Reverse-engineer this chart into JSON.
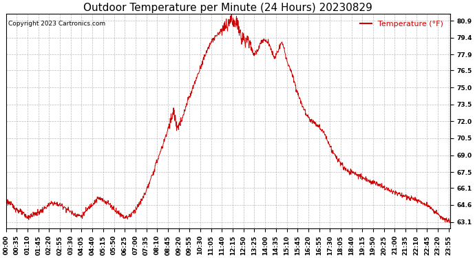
{
  "title": "Outdoor Temperature per Minute (24 Hours) 20230829",
  "copyright": "Copyright 2023 Cartronics.com",
  "legend_label": "Temperature (°F)",
  "line_color": "#cc0000",
  "background_color": "#ffffff",
  "grid_color": "#aaaaaa",
  "yticks": [
    63.1,
    64.6,
    66.1,
    67.5,
    69.0,
    70.5,
    72.0,
    73.5,
    75.0,
    76.5,
    77.9,
    79.4,
    80.9
  ],
  "ymin": 62.5,
  "ymax": 81.5,
  "title_fontsize": 11,
  "tick_fontsize": 6.5,
  "legend_fontsize": 8,
  "copyright_fontsize": 6.5
}
